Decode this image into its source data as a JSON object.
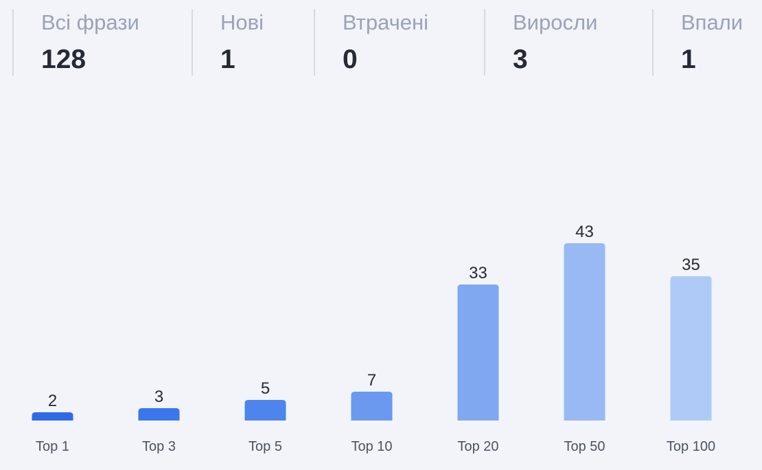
{
  "stats": [
    {
      "label": "Всі фрази",
      "value": "128"
    },
    {
      "label": "Нові",
      "value": "1"
    },
    {
      "label": "Втрачені",
      "value": "0"
    },
    {
      "label": "Виросли",
      "value": "3"
    },
    {
      "label": "Впали",
      "value": "1"
    }
  ],
  "chart_data": {
    "type": "bar",
    "categories": [
      "Top 1",
      "Top 3",
      "Top 5",
      "Top 10",
      "Top 20",
      "Top 50",
      "Top 100"
    ],
    "values": [
      2,
      3,
      5,
      7,
      33,
      43,
      35
    ],
    "colors": [
      "#2f6ae8",
      "#3b76ea",
      "#4d85ec",
      "#6a99ef",
      "#80a8f1",
      "#98b9f3",
      "#afcaf6"
    ],
    "title": "",
    "xlabel": "",
    "ylabel": "",
    "ylim": [
      0,
      43
    ],
    "grid": false,
    "legend": "none"
  }
}
